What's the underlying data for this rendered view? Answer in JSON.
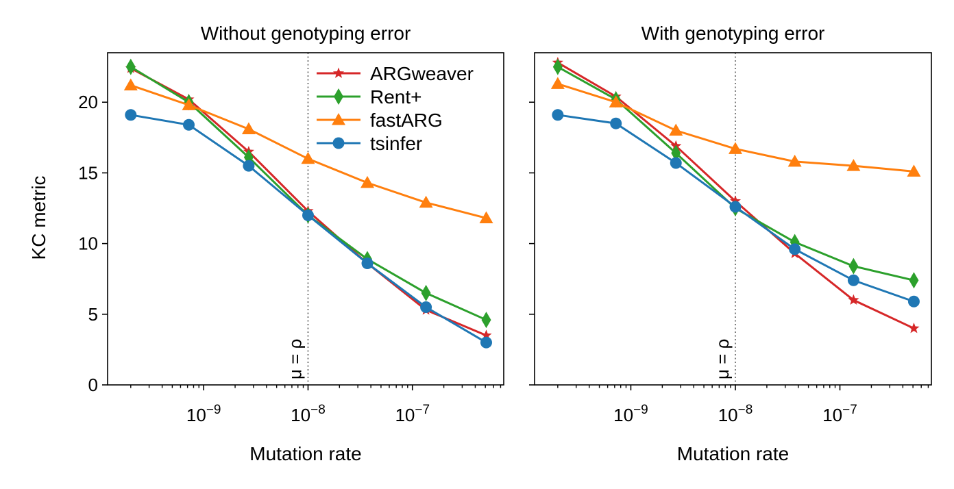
{
  "figure": {
    "ylabel": "KC metric",
    "legend": {
      "placement": "top-right of left panel",
      "entries": [
        {
          "label": "ARGweaver",
          "color": "#d62728",
          "marker": "star"
        },
        {
          "label": "Rent+",
          "color": "#2ca02c",
          "marker": "diamond"
        },
        {
          "label": "fastARG",
          "color": "#ff7f0e",
          "marker": "triangle"
        },
        {
          "label": "tsinfer",
          "color": "#1f77b4",
          "marker": "circle"
        }
      ]
    },
    "annotation": "μ = ρ"
  },
  "chart_data": [
    {
      "type": "line",
      "title": "Without genotyping error",
      "xlabel": "Mutation rate",
      "ylabel": "KC metric",
      "xscale": "log",
      "xlim": [
        1.2e-10,
        7.5e-07
      ],
      "ylim": [
        0,
        23.5
      ],
      "xticks": [
        {
          "value": 1e-09,
          "label": "10^-9"
        },
        {
          "value": 1e-08,
          "label": "10^-8"
        },
        {
          "value": 1e-07,
          "label": "10^-7"
        }
      ],
      "yticks": [
        0,
        5,
        10,
        15,
        20
      ],
      "vline": {
        "x": 1e-08,
        "style": "dotted",
        "label": "μ = ρ"
      },
      "grid": false,
      "x": [
        2e-10,
        7.2e-10,
        2.7e-09,
        1e-08,
        3.7e-08,
        1.35e-07,
        5.1e-07
      ],
      "series": [
        {
          "name": "ARGweaver",
          "color": "#d62728",
          "marker": "star",
          "values": [
            22.4,
            20.2,
            16.5,
            12.3,
            8.6,
            5.3,
            3.5
          ]
        },
        {
          "name": "Rent+",
          "color": "#2ca02c",
          "marker": "diamond",
          "values": [
            22.5,
            20.0,
            16.1,
            12.0,
            8.9,
            6.5,
            4.6
          ]
        },
        {
          "name": "fastARG",
          "color": "#ff7f0e",
          "marker": "triangle",
          "values": [
            21.2,
            19.8,
            18.1,
            16.0,
            14.3,
            12.9,
            11.8
          ]
        },
        {
          "name": "tsinfer",
          "color": "#1f77b4",
          "marker": "circle",
          "values": [
            19.1,
            18.4,
            15.5,
            12.0,
            8.6,
            5.5,
            3.0
          ]
        }
      ]
    },
    {
      "type": "line",
      "title": "With genotyping error",
      "xlabel": "Mutation rate",
      "ylabel": "",
      "xscale": "log",
      "xlim": [
        1.2e-10,
        7.5e-07
      ],
      "ylim": [
        0,
        23.5
      ],
      "xticks": [
        {
          "value": 1e-09,
          "label": "10^-9"
        },
        {
          "value": 1e-08,
          "label": "10^-8"
        },
        {
          "value": 1e-07,
          "label": "10^-7"
        }
      ],
      "yticks": [
        0,
        5,
        10,
        15,
        20
      ],
      "vline": {
        "x": 1e-08,
        "style": "dotted",
        "label": "μ = ρ"
      },
      "grid": false,
      "x": [
        2e-10,
        7.2e-10,
        2.7e-09,
        1e-08,
        3.7e-08,
        1.35e-07,
        5.1e-07
      ],
      "series": [
        {
          "name": "ARGweaver",
          "color": "#d62728",
          "marker": "star",
          "values": [
            22.8,
            20.4,
            16.9,
            13.0,
            9.3,
            6.0,
            4.0
          ]
        },
        {
          "name": "Rent+",
          "color": "#2ca02c",
          "marker": "diamond",
          "values": [
            22.5,
            20.2,
            16.4,
            12.5,
            10.1,
            8.4,
            7.4
          ]
        },
        {
          "name": "fastARG",
          "color": "#ff7f0e",
          "marker": "triangle",
          "values": [
            21.3,
            20.0,
            18.0,
            16.7,
            15.8,
            15.5,
            15.1
          ]
        },
        {
          "name": "tsinfer",
          "color": "#1f77b4",
          "marker": "circle",
          "values": [
            19.1,
            18.5,
            15.7,
            12.6,
            9.6,
            7.4,
            5.9
          ]
        }
      ]
    }
  ]
}
